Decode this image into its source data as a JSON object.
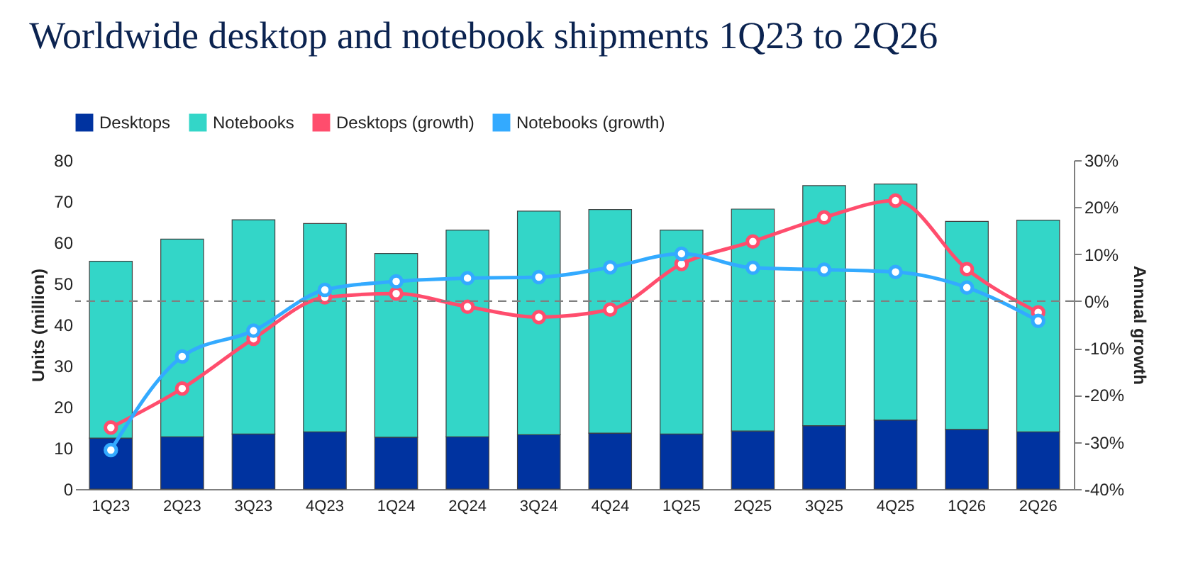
{
  "chart_data": {
    "type": "bar",
    "title": "Worldwide desktop and notebook shipments 1Q23 to 2Q26",
    "ylabel": "Units (million)",
    "y2label": "Annual growth",
    "categories": [
      "1Q23",
      "2Q23",
      "3Q23",
      "4Q23",
      "1Q24",
      "2Q24",
      "3Q24",
      "4Q24",
      "1Q25",
      "2Q25",
      "3Q25",
      "4Q25",
      "1Q26",
      "2Q26"
    ],
    "stacked": true,
    "legend": "top",
    "grid": false,
    "ylim": [
      0,
      80
    ],
    "yticks": [
      0,
      10,
      20,
      30,
      40,
      50,
      60,
      70,
      80
    ],
    "y2lim": [
      -40,
      30
    ],
    "y2ticks": [
      {
        "value": -40,
        "label": "-40%"
      },
      {
        "value": -30,
        "label": "-30%"
      },
      {
        "value": -20,
        "label": "-20%"
      },
      {
        "value": -10,
        "label": "-10%"
      },
      {
        "value": 0,
        "label": "0%"
      },
      {
        "value": 10,
        "label": "10%"
      },
      {
        "value": 20,
        "label": "20%"
      },
      {
        "value": 30,
        "label": "30%"
      }
    ],
    "series": [
      {
        "name": "Desktops",
        "type": "bar",
        "color": "#0033a0",
        "values": [
          12.4,
          12.7,
          13.4,
          13.9,
          12.6,
          12.7,
          13.2,
          13.6,
          13.4,
          14.1,
          15.4,
          16.8,
          14.5,
          13.9
        ]
      },
      {
        "name": "Notebooks",
        "type": "bar",
        "color": "#33d6c8",
        "values": [
          43.0,
          48.1,
          52.1,
          50.7,
          44.7,
          50.3,
          54.4,
          54.4,
          49.6,
          54.0,
          58.4,
          57.4,
          50.6,
          51.5
        ]
      },
      {
        "name": "Desktops (growth)",
        "type": "line",
        "axis": "y2",
        "marker": "circle",
        "line_style": "solid",
        "color": "#ff4d6d",
        "values": [
          -26.9,
          -18.6,
          -8.0,
          0.8,
          1.6,
          -1.2,
          -3.4,
          -1.8,
          7.9,
          12.7,
          17.8,
          21.4,
          6.8,
          -2.4
        ]
      },
      {
        "name": "Notebooks (growth)",
        "type": "line",
        "axis": "y2",
        "marker": "circle",
        "line_style": "solid",
        "color": "#33aaff",
        "values": [
          -31.7,
          -11.8,
          -6.3,
          2.4,
          4.2,
          4.9,
          5.1,
          7.2,
          10.1,
          7.1,
          6.7,
          6.2,
          2.9,
          -4.2
        ]
      }
    ],
    "ref_lines": [
      {
        "axis": "y2",
        "value": 0,
        "color": "#808080",
        "line_style": "dashed"
      }
    ]
  }
}
